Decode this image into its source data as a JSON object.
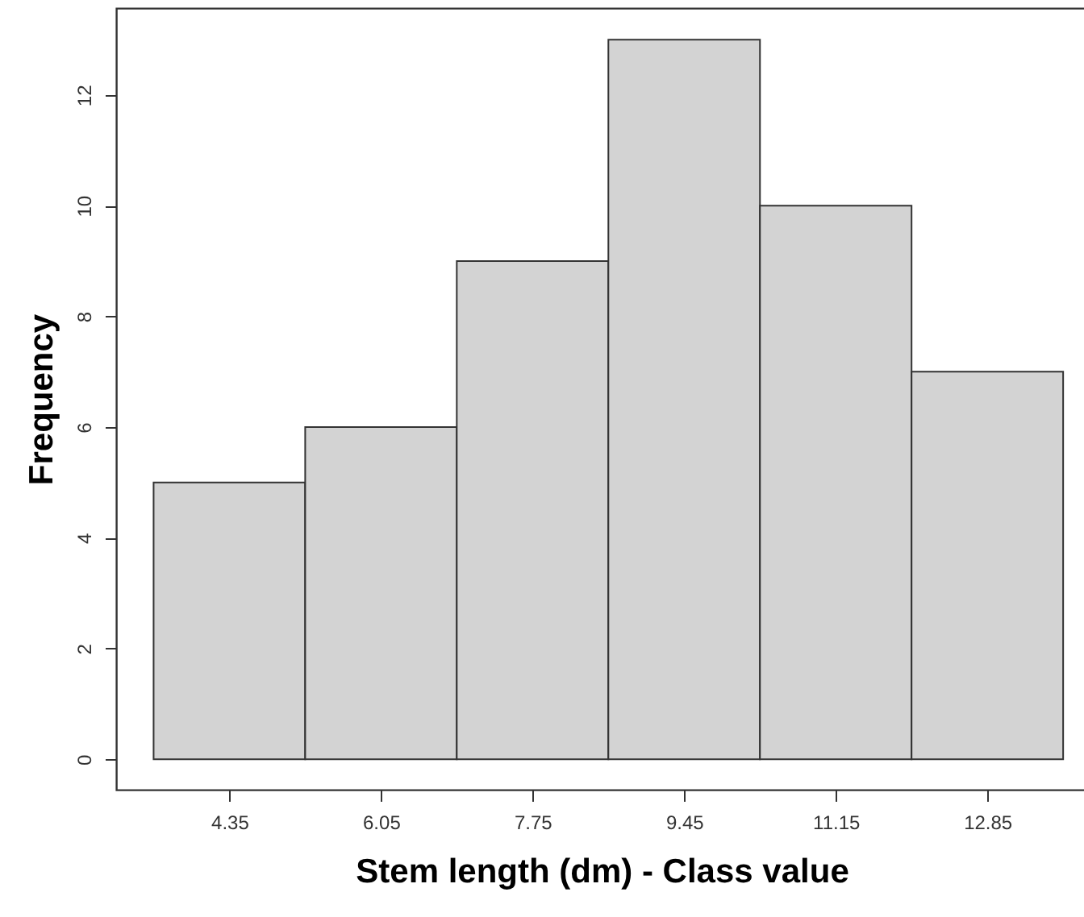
{
  "chart_data": {
    "type": "histogram",
    "xlabel": "Stem length (dm) - Class value",
    "ylabel": "Frequency",
    "bins": [
      3.5,
      5.2,
      6.9,
      8.6,
      10.3,
      12.0,
      13.7
    ],
    "values": [
      5,
      6,
      9,
      13,
      10,
      7
    ],
    "color": "#d3d3d3",
    "xlim": [
      3.08,
      13.97
    ],
    "ylim": [
      -0.55,
      13.57
    ],
    "xticks": [
      4.35,
      6.05,
      7.75,
      9.45,
      11.15,
      12.85
    ],
    "yticks": [
      0,
      2,
      4,
      6,
      8,
      10,
      12
    ]
  }
}
